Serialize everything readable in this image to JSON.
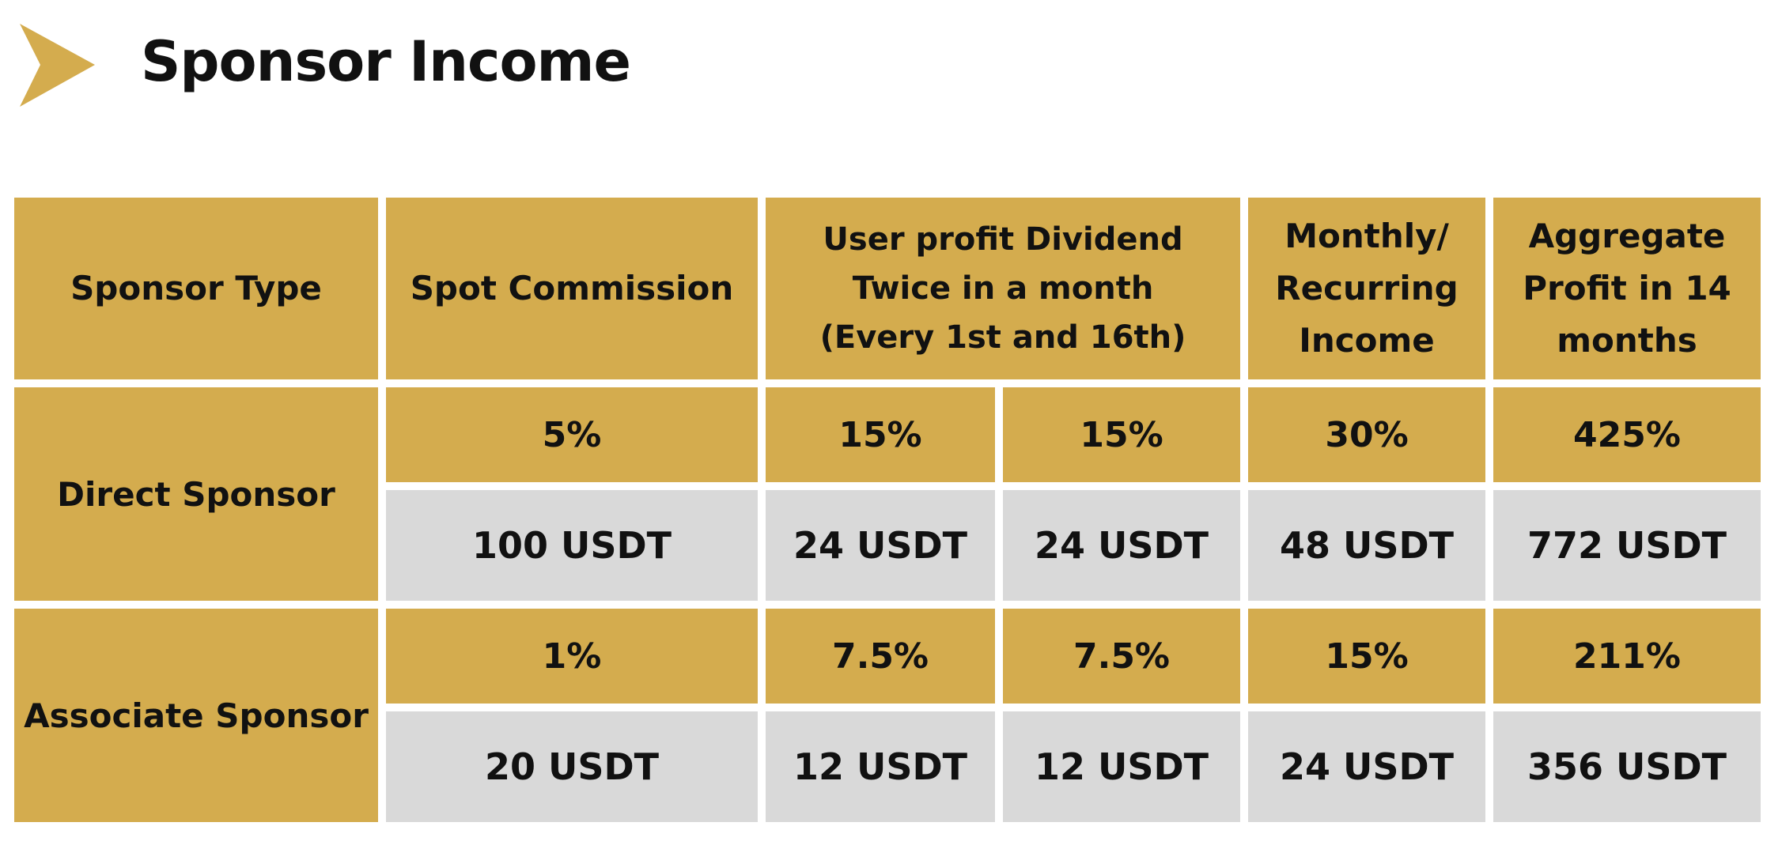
{
  "title": "Sponsor Income",
  "table": {
    "headers": {
      "sponsor_type": "Sponsor Type",
      "spot_commission": "Spot Commission",
      "dividend": [
        "User profit Dividend",
        "Twice in a month",
        "(Every 1st and 16th)"
      ],
      "monthly": [
        "Monthly/",
        "Recurring",
        "Income"
      ],
      "aggregate": [
        "Aggregate",
        "Profit in 14",
        "months"
      ]
    },
    "rows": [
      {
        "label": "Direct Sponsor",
        "percent": {
          "spot": "5%",
          "div1": "15%",
          "div2": "15%",
          "monthly": "30%",
          "aggregate": "425%"
        },
        "amount": {
          "spot": "100 USDT",
          "div1": "24 USDT",
          "div2": "24 USDT",
          "monthly": "48 USDT",
          "aggregate": "772 USDT"
        }
      },
      {
        "label": "Associate Sponsor",
        "percent": {
          "spot": "1%",
          "div1": "7.5%",
          "div2": "7.5%",
          "monthly": "15%",
          "aggregate": "211%"
        },
        "amount": {
          "spot": "20 USDT",
          "div1": "12 USDT",
          "div2": "12 USDT",
          "monthly": "24 USDT",
          "aggregate": "356 USDT"
        }
      }
    ]
  },
  "colors": {
    "gold": "#d4ac4e",
    "grey": "#d9d9d9",
    "text": "#111111"
  },
  "icons": {
    "title_marker": "chevron-right-icon"
  }
}
